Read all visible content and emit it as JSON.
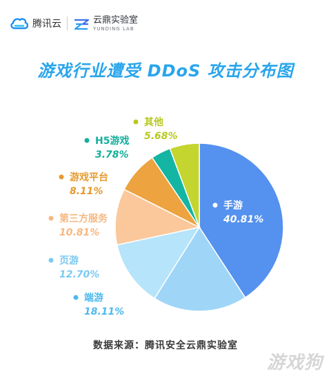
{
  "header": {
    "brand_name": "腾讯云",
    "lab_name": "云鼎实验室",
    "lab_subtitle": "YUNDING LAB"
  },
  "colors": {
    "title": "#29a5ec",
    "source": "#3a3a3a"
  },
  "chart_data": {
    "type": "pie",
    "title": "游戏行业遭受 DDoS 攻击分布图",
    "unit": "%",
    "slices": [
      {
        "label": "手游",
        "value": 40.81,
        "value_text": "40.81%",
        "color": "#5591ee"
      },
      {
        "label": "端游",
        "value": 18.11,
        "value_text": "18.11%",
        "color": "#9fd6f7"
      },
      {
        "label": "页游",
        "value": 12.7,
        "value_text": "12.70%",
        "color": "#b6e4fa"
      },
      {
        "label": "第三方服务",
        "value": 10.81,
        "value_text": "10.81%",
        "color": "#fac89b"
      },
      {
        "label": "游戏平台",
        "value": 8.11,
        "value_text": "8.11%",
        "color": "#eda33f"
      },
      {
        "label": "H5游戏",
        "value": 3.78,
        "value_text": "3.78%",
        "color": "#14b5a2"
      },
      {
        "label": "其他",
        "value": 5.68,
        "value_text": "5.68%",
        "color": "#c3d52e"
      }
    ],
    "label_colors": {
      "手游": "#ffffff",
      "端游": "#4fb9ec",
      "页游": "#7cc9f1",
      "第三方服务": "#f5b882",
      "游戏平台": "#e59a2e",
      "H5游戏": "#14ae9c",
      "其他": "#b7c820"
    }
  },
  "source": "数据来源：腾讯安全云鼎实验室",
  "watermark": "游戏狗"
}
